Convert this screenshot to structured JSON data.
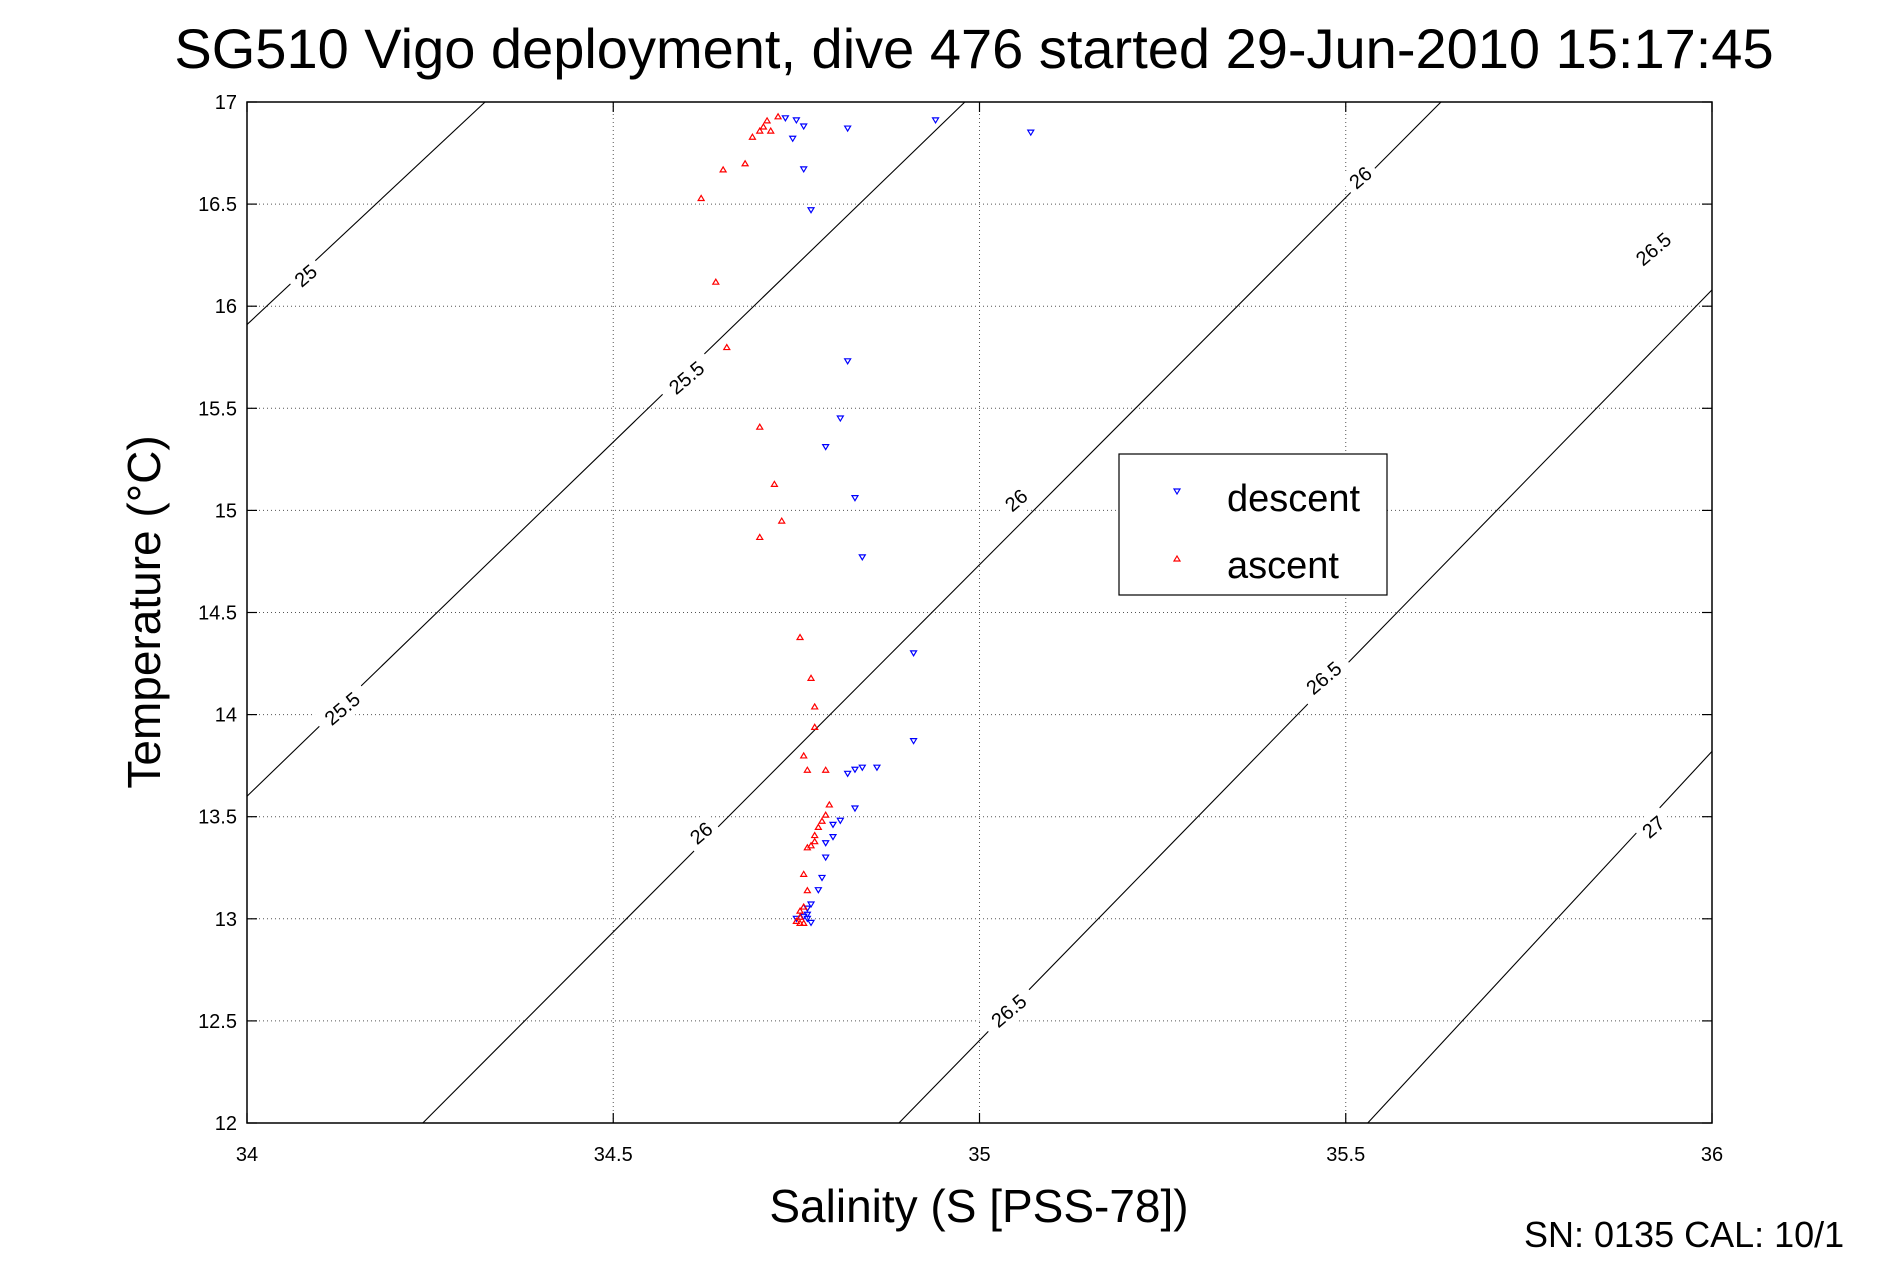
{
  "chart_data": {
    "type": "scatter",
    "title": "SG510 Vigo deployment, dive 476 started 29-Jun-2010 15:17:45",
    "xlabel": "Salinity (S [PSS-78])",
    "ylabel": "Temperature (°C)",
    "xlim": [
      34,
      36
    ],
    "ylim": [
      12,
      17
    ],
    "xticks": [
      34,
      34.5,
      35,
      35.5,
      36
    ],
    "xtick_labels": [
      "34",
      "34.5",
      "35",
      "35.5",
      "36"
    ],
    "yticks": [
      12,
      12.5,
      13,
      13.5,
      14,
      14.5,
      15,
      15.5,
      16,
      16.5,
      17
    ],
    "ytick_labels": [
      "12",
      "12.5",
      "13",
      "13.5",
      "14",
      "14.5",
      "15",
      "15.5",
      "16",
      "16.5",
      "17"
    ],
    "grid": true,
    "legend_position": "center-right",
    "footer_text": "SN: 0135  CAL: 10/1",
    "series": [
      {
        "name": "descent",
        "color": "#0000ff",
        "marker": "triangle-down",
        "points": [
          [
            34.735,
            16.92
          ],
          [
            34.75,
            16.91
          ],
          [
            34.76,
            16.88
          ],
          [
            34.745,
            16.82
          ],
          [
            34.82,
            16.87
          ],
          [
            34.94,
            16.91
          ],
          [
            35.07,
            16.85
          ],
          [
            34.76,
            16.67
          ],
          [
            34.77,
            16.47
          ],
          [
            34.82,
            15.73
          ],
          [
            34.81,
            15.45
          ],
          [
            34.79,
            15.31
          ],
          [
            34.83,
            15.06
          ],
          [
            34.84,
            14.77
          ],
          [
            34.91,
            14.3
          ],
          [
            34.91,
            13.87
          ],
          [
            34.82,
            13.71
          ],
          [
            34.83,
            13.73
          ],
          [
            34.84,
            13.74
          ],
          [
            34.86,
            13.74
          ],
          [
            34.83,
            13.54
          ],
          [
            34.81,
            13.48
          ],
          [
            34.8,
            13.46
          ],
          [
            34.8,
            13.4
          ],
          [
            34.79,
            13.37
          ],
          [
            34.79,
            13.3
          ],
          [
            34.785,
            13.2
          ],
          [
            34.78,
            13.14
          ],
          [
            34.77,
            13.07
          ],
          [
            34.765,
            13.05
          ],
          [
            34.765,
            13.02
          ],
          [
            34.76,
            13.01
          ],
          [
            34.765,
            13.0
          ],
          [
            34.77,
            12.98
          ],
          [
            34.75,
            13.0
          ]
        ]
      },
      {
        "name": "ascent",
        "color": "#ff0000",
        "marker": "triangle-up",
        "points": [
          [
            34.725,
            16.93
          ],
          [
            34.71,
            16.91
          ],
          [
            34.705,
            16.88
          ],
          [
            34.715,
            16.86
          ],
          [
            34.7,
            16.86
          ],
          [
            34.69,
            16.83
          ],
          [
            34.68,
            16.7
          ],
          [
            34.65,
            16.67
          ],
          [
            34.62,
            16.53
          ],
          [
            34.64,
            16.12
          ],
          [
            34.655,
            15.8
          ],
          [
            34.7,
            15.41
          ],
          [
            34.72,
            15.13
          ],
          [
            34.73,
            14.95
          ],
          [
            34.7,
            14.87
          ],
          [
            34.755,
            14.38
          ],
          [
            34.77,
            14.18
          ],
          [
            34.775,
            14.04
          ],
          [
            34.775,
            13.94
          ],
          [
            34.76,
            13.8
          ],
          [
            34.765,
            13.73
          ],
          [
            34.79,
            13.73
          ],
          [
            34.795,
            13.56
          ],
          [
            34.79,
            13.51
          ],
          [
            34.785,
            13.48
          ],
          [
            34.78,
            13.45
          ],
          [
            34.775,
            13.41
          ],
          [
            34.77,
            13.36
          ],
          [
            34.775,
            13.38
          ],
          [
            34.765,
            13.35
          ],
          [
            34.76,
            13.22
          ],
          [
            34.765,
            13.14
          ],
          [
            34.76,
            13.06
          ],
          [
            34.755,
            13.04
          ],
          [
            34.755,
            13.01
          ],
          [
            34.75,
            12.99
          ],
          [
            34.755,
            12.98
          ],
          [
            34.76,
            12.98
          ]
        ]
      }
    ],
    "contours": {
      "label": "sigma-theta isopycnals",
      "lines": [
        {
          "level": 25,
          "points": [
            [
              34.0,
              15.91
            ],
            [
              34.325,
              17.0
            ]
          ]
        },
        {
          "level": 25.5,
          "points": [
            [
              34.0,
              13.6
            ],
            [
              34.98,
              17.0
            ]
          ]
        },
        {
          "level": 26,
          "points": [
            [
              34.24,
              12.0
            ],
            [
              35.63,
              17.0
            ]
          ]
        },
        {
          "level": 26.5,
          "points": [
            [
              34.89,
              12.0
            ],
            [
              36.0,
              16.08
            ]
          ]
        },
        {
          "level": 27,
          "points": [
            [
              35.53,
              12.0
            ],
            [
              36.0,
              13.82
            ]
          ]
        }
      ],
      "labels": [
        {
          "text": "25",
          "at": [
            34.08,
            16.15
          ]
        },
        {
          "text": "25.5",
          "at": [
            34.13,
            14.03
          ]
        },
        {
          "text": "25.5",
          "at": [
            34.6,
            15.65
          ]
        },
        {
          "text": "26",
          "at": [
            34.62,
            13.42
          ]
        },
        {
          "text": "26",
          "at": [
            35.05,
            15.05
          ]
        },
        {
          "text": "26",
          "at": [
            35.52,
            16.63
          ]
        },
        {
          "text": "26.5",
          "at": [
            35.04,
            12.55
          ]
        },
        {
          "text": "26.5",
          "at": [
            35.47,
            14.18
          ]
        },
        {
          "text": "26.5",
          "at": [
            35.92,
            16.28
          ]
        },
        {
          "text": "27",
          "at": [
            35.92,
            13.45
          ]
        }
      ]
    }
  }
}
